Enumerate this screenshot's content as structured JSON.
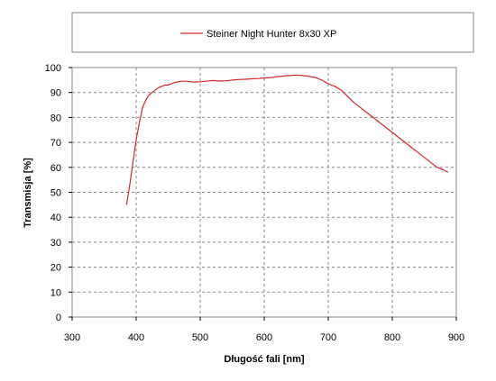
{
  "chart_data": {
    "type": "line",
    "title": "",
    "xlabel": "Długość fali [nm]",
    "ylabel": "Transmisja [%]",
    "xlim": [
      300,
      900
    ],
    "ylim": [
      0,
      100
    ],
    "xticks": [
      300,
      400,
      500,
      600,
      700,
      800,
      900
    ],
    "yticks": [
      0,
      10,
      20,
      30,
      40,
      50,
      60,
      70,
      80,
      90,
      100
    ],
    "grid": true,
    "legend_position": "top",
    "series": [
      {
        "name": "Steiner Night Hunter 8x30 XP",
        "color": "#d62728",
        "x": [
          385,
          390,
          395,
          400,
          405,
          410,
          415,
          420,
          425,
          430,
          435,
          440,
          445,
          450,
          460,
          470,
          480,
          490,
          500,
          510,
          520,
          530,
          540,
          550,
          560,
          570,
          580,
          590,
          600,
          610,
          620,
          630,
          640,
          650,
          660,
          670,
          680,
          690,
          700,
          710,
          720,
          730,
          740,
          750,
          760,
          770,
          780,
          790,
          800,
          810,
          820,
          830,
          840,
          850,
          860,
          870,
          880,
          887
        ],
        "y": [
          45,
          53,
          62,
          71,
          78,
          84,
          87,
          89,
          90,
          91,
          92,
          92.5,
          93,
          93,
          94,
          94.5,
          94.5,
          94.2,
          94.3,
          94.5,
          94.8,
          94.6,
          94.7,
          95,
          95.2,
          95.3,
          95.5,
          95.6,
          95.8,
          96,
          96.3,
          96.6,
          96.8,
          97,
          96.8,
          96.5,
          96,
          95,
          93.5,
          92.5,
          91,
          88.5,
          86,
          84,
          82,
          80,
          78,
          76,
          74,
          72,
          70,
          68,
          66,
          64,
          62,
          60,
          59,
          58
        ]
      }
    ]
  }
}
